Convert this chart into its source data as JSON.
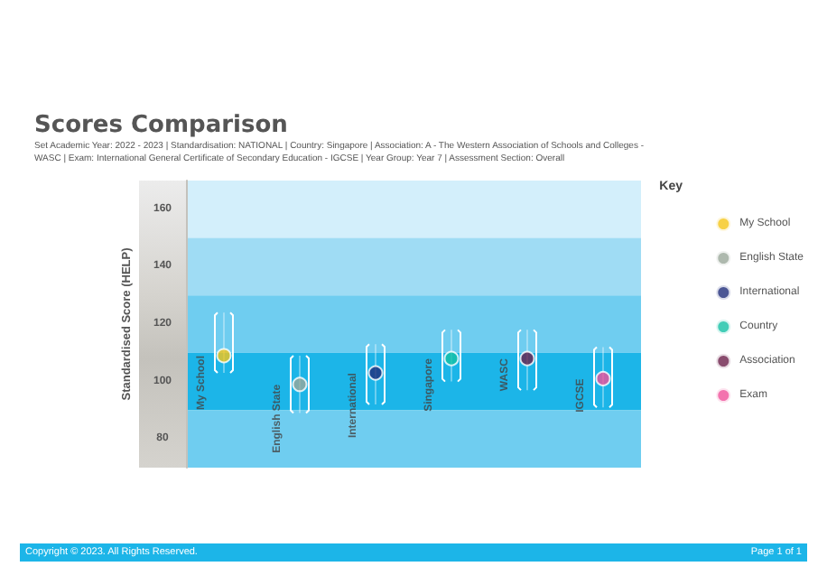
{
  "chart_data": {
    "type": "scatter",
    "title": "Scores Comparison",
    "subtitle": "Set Academic Year: 2022 - 2023 | Standardisation: NATIONAL | Country: Singapore | Association: A - The Western Association of Schools and Colleges - WASC | Exam: International General Certificate of Secondary Education - IGCSE | Year Group: Year 7 | Assessment Section: Overall",
    "ylabel": "Standardised Score (HELP)",
    "legend_title": "Key",
    "categories": [
      "My School",
      "English State",
      "International",
      "Singapore",
      "WASC",
      "IGCSE"
    ],
    "series": [
      {
        "name": "My School",
        "color": "#f5c518",
        "values": [
          109,
          null,
          null,
          null,
          null,
          null
        ],
        "errors": [
          [
            103,
            124
          ],
          null,
          null,
          null,
          null,
          null
        ]
      },
      {
        "name": "English State",
        "color": "#9aa79a",
        "values": [
          null,
          99,
          null,
          null,
          null,
          null
        ],
        "errors": [
          null,
          [
            89,
            109
          ],
          null,
          null,
          null,
          null
        ]
      },
      {
        "name": "International",
        "color": "#1f2d7a",
        "values": [
          null,
          null,
          103,
          null,
          null,
          null
        ],
        "errors": [
          null,
          null,
          [
            92,
            113
          ],
          null,
          null,
          null
        ]
      },
      {
        "name": "Country",
        "color": "#14c0a5",
        "values": [
          null,
          null,
          null,
          108,
          null,
          null
        ],
        "errors": [
          null,
          null,
          null,
          [
            100,
            118
          ],
          null,
          null
        ]
      },
      {
        "name": "Association",
        "color": "#6b1f4a",
        "values": [
          null,
          null,
          null,
          null,
          108,
          null
        ],
        "errors": [
          null,
          null,
          null,
          null,
          [
            97,
            118
          ],
          null
        ]
      },
      {
        "name": "Exam",
        "color": "#f0509a",
        "values": [
          null,
          null,
          null,
          null,
          null,
          101
        ],
        "errors": [
          null,
          null,
          null,
          null,
          null,
          [
            91,
            112
          ]
        ]
      }
    ],
    "ylim": [
      70,
      170
    ],
    "yticks": [
      80,
      100,
      120,
      140,
      160
    ],
    "bands": [
      {
        "axis": "y",
        "from": 150,
        "to": 170,
        "color": "#d3effb"
      },
      {
        "axis": "y",
        "from": 130,
        "to": 150,
        "color": "#9fdcf4"
      },
      {
        "axis": "y",
        "from": 110,
        "to": 130,
        "color": "#6fcdf0"
      },
      {
        "axis": "y",
        "from": 90,
        "to": 110,
        "color": "#1cb5e8"
      },
      {
        "axis": "y",
        "from": 70,
        "to": 90,
        "color": "#6fcdf0"
      }
    ],
    "legend": "right",
    "marker": "circle",
    "annotations": [
      "Copyright © 2023. All Rights Reserved.",
      "Page 1 of 1"
    ]
  }
}
